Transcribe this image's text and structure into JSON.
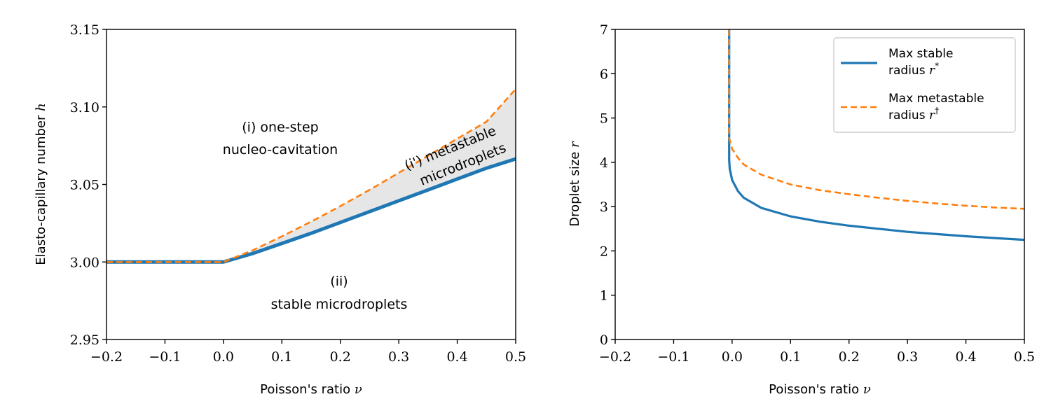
{
  "colors": {
    "blue": "#1f77b4",
    "orange": "#ff7f0e",
    "fill": "#e6e6e6",
    "axis": "#000000"
  },
  "chart_data": [
    {
      "type": "line",
      "xlabel": "Poisson's ratio ",
      "xlabel_sym": "ν",
      "ylabel": "Elasto-capillary number ",
      "ylabel_sym": "h",
      "xlim": [
        -0.2,
        0.5
      ],
      "ylim": [
        2.95,
        3.15
      ],
      "x_ticks": [
        -0.2,
        -0.1,
        0.0,
        0.1,
        0.2,
        0.3,
        0.4,
        0.5
      ],
      "x_tick_labels": [
        "−0.2",
        "−0.1",
        "0.0",
        "0.1",
        "0.2",
        "0.3",
        "0.4",
        "0.5"
      ],
      "y_ticks": [
        2.95,
        3.0,
        3.05,
        3.1,
        3.15
      ],
      "y_tick_labels": [
        "2.95",
        "3.00",
        "3.05",
        "3.10",
        "3.15"
      ],
      "series": [
        {
          "name": "Max stable radius",
          "style": "solid",
          "color": "#1f77b4",
          "x": [
            -0.2,
            -0.1,
            0.0,
            0.05,
            0.1,
            0.15,
            0.2,
            0.25,
            0.3,
            0.35,
            0.4,
            0.45,
            0.5
          ],
          "y": [
            3.0,
            3.0,
            3.0,
            3.0055,
            3.012,
            3.0185,
            3.0255,
            3.0325,
            3.0395,
            3.0465,
            3.0535,
            3.0605,
            3.0665
          ]
        },
        {
          "name": "Max metastable radius",
          "style": "dashed",
          "color": "#ff7f0e",
          "x": [
            -0.2,
            -0.1,
            0.0,
            0.05,
            0.1,
            0.15,
            0.2,
            0.25,
            0.3,
            0.35,
            0.4,
            0.45,
            0.5
          ],
          "y": [
            3.0,
            3.0,
            3.0,
            3.0075,
            3.0165,
            3.026,
            3.036,
            3.0465,
            3.0575,
            3.0685,
            3.0795,
            3.0905,
            3.1115
          ]
        }
      ],
      "annotations": [
        {
          "lines": [
            "(i) one-step",
            "nucleo-cavitation"
          ]
        },
        {
          "lines": [
            "(i') metastable",
            "microdroplets"
          ]
        },
        {
          "lines": [
            "(ii)",
            "stable microdroplets"
          ]
        }
      ]
    },
    {
      "type": "line",
      "xlabel": "Poisson's ratio ",
      "xlabel_sym": "ν",
      "ylabel": "Droplet size ",
      "ylabel_sym": "r",
      "xlim": [
        -0.2,
        0.5
      ],
      "ylim": [
        0,
        7
      ],
      "x_ticks": [
        -0.2,
        -0.1,
        0.0,
        0.1,
        0.2,
        0.3,
        0.4,
        0.5
      ],
      "x_tick_labels": [
        "−0.2",
        "−0.1",
        "0.0",
        "0.1",
        "0.2",
        "0.3",
        "0.4",
        "0.5"
      ],
      "y_ticks": [
        0,
        1,
        2,
        3,
        4,
        5,
        6,
        7
      ],
      "y_tick_labels": [
        "0",
        "1",
        "2",
        "3",
        "4",
        "5",
        "6",
        "7"
      ],
      "legend_position": "top-right",
      "series": [
        {
          "name": "Max stable",
          "name2": "radius ",
          "sym": "r",
          "sup": "*",
          "style": "solid",
          "color": "#1f77b4",
          "x": [
            -0.005,
            -0.005,
            -0.004,
            0.0,
            0.01,
            0.02,
            0.05,
            0.1,
            0.15,
            0.2,
            0.25,
            0.3,
            0.35,
            0.4,
            0.45,
            0.5
          ],
          "y": [
            7.0,
            4.05,
            3.85,
            3.6,
            3.35,
            3.2,
            2.97,
            2.78,
            2.66,
            2.57,
            2.5,
            2.43,
            2.38,
            2.33,
            2.29,
            2.25
          ]
        },
        {
          "name": "Max metastable",
          "name2": "radius ",
          "sym": "r",
          "sup": "†",
          "style": "dashed",
          "color": "#ff7f0e",
          "x": [
            -0.005,
            -0.005,
            -0.003,
            0.0,
            0.01,
            0.02,
            0.05,
            0.1,
            0.15,
            0.2,
            0.25,
            0.3,
            0.35,
            0.4,
            0.45,
            0.5
          ],
          "y": [
            7.0,
            4.55,
            4.45,
            4.3,
            4.1,
            3.95,
            3.72,
            3.5,
            3.37,
            3.28,
            3.2,
            3.13,
            3.07,
            3.02,
            2.98,
            2.95
          ]
        }
      ]
    }
  ]
}
